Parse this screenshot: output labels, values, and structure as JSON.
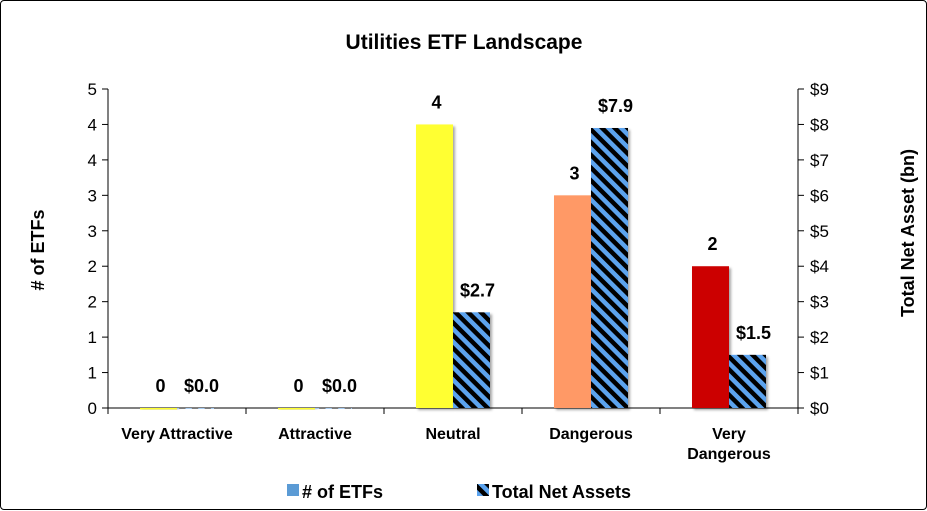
{
  "chart_data": {
    "type": "bar",
    "title": "Utilities ETF Landscape",
    "categories": [
      "Very Attractive",
      "Attractive",
      "Neutral",
      "Dangerous",
      "Very Dangerous"
    ],
    "category_lines": [
      [
        "Very Attractive"
      ],
      [
        "Attractive"
      ],
      [
        "Neutral"
      ],
      [
        "Dangerous"
      ],
      [
        "Very",
        "Dangerous"
      ]
    ],
    "ylabel": "# of ETFs",
    "y2label": "Total Net Asset (bn)",
    "ylim": [
      0,
      4.5
    ],
    "y2lim": [
      0,
      9
    ],
    "y_tick_values": [
      0,
      0.5,
      1,
      1.5,
      2,
      2.5,
      3,
      3.5,
      4,
      4.5
    ],
    "y_tick_labels": [
      "0",
      "1",
      "1",
      "2",
      "2",
      "3",
      "3",
      "4",
      "4",
      "5"
    ],
    "y2_tick_values": [
      0,
      1,
      2,
      3,
      4,
      5,
      6,
      7,
      8,
      9
    ],
    "y2_tick_labels": [
      "$0",
      "$1",
      "$2",
      "$3",
      "$4",
      "$5",
      "$6",
      "$7",
      "$8",
      "$9"
    ],
    "grid": false,
    "legend_position": "bottom",
    "series": [
      {
        "name": "# of ETFs",
        "axis": "left",
        "values": [
          0,
          0,
          4,
          3,
          2
        ],
        "labels": [
          "0",
          "0",
          "4",
          "3",
          "2"
        ],
        "colors": [
          "#ffff33",
          "#ffff33",
          "#ffff33",
          "#ff9966",
          "#cc0000"
        ],
        "legend_color": "#5b9bd5"
      },
      {
        "name": "Total Net Assets",
        "axis": "right",
        "values": [
          0.0,
          0.0,
          2.7,
          7.9,
          1.5
        ],
        "labels": [
          "$0.0",
          "$0.0",
          "$2.7",
          "$7.9",
          "$1.5"
        ],
        "pattern_colors": [
          "#5ba3ee",
          "#000000"
        ]
      }
    ]
  }
}
